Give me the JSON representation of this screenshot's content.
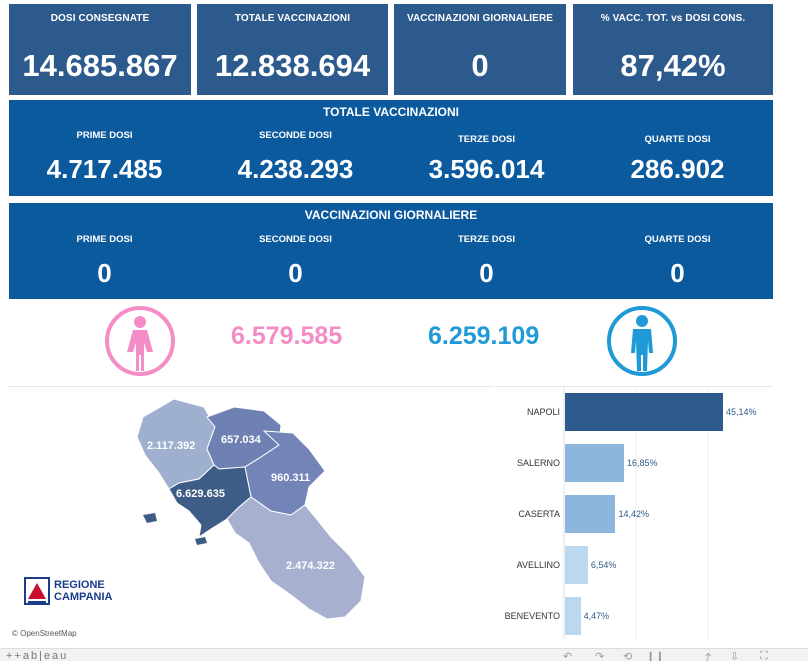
{
  "kpis": [
    {
      "label": "DOSI  CONSEGNATE",
      "value": "14.685.867"
    },
    {
      "label": "TOTALE VACCINAZIONI",
      "value": "12.838.694"
    },
    {
      "label": "VACCINAZIONI GIORNALIERE",
      "value": "0"
    },
    {
      "label": "% VACC. TOT. vs DOSI CONS.",
      "value": "87,42%"
    }
  ],
  "totale": {
    "title": "TOTALE VACCINAZIONI",
    "cols": [
      {
        "label": "PRIME DOSI",
        "value": "4.717.485"
      },
      {
        "label": "SECONDE DOSI",
        "value": "4.238.293"
      },
      {
        "label": "TERZE DOSI",
        "value": "3.596.014"
      },
      {
        "label": "QUARTE DOSI",
        "value": "286.902"
      }
    ]
  },
  "giornaliere": {
    "title": "VACCINAZIONI GIORNALIERE",
    "cols": [
      {
        "label": "PRIME DOSI",
        "value": "0"
      },
      {
        "label": "SECONDE DOSI",
        "value": "0"
      },
      {
        "label": "TERZE DOSI",
        "value": "0"
      },
      {
        "label": "QUARTE DOSI",
        "value": "0"
      }
    ]
  },
  "gender": {
    "female_value": "6.579.585",
    "male_value": "6.259.109",
    "female_color": "#f48cc6",
    "male_color": "#1f9ad6"
  },
  "map": {
    "provinces": [
      {
        "name": "Caserta",
        "value": "2.117.392"
      },
      {
        "name": "Benevento",
        "value": "657.034"
      },
      {
        "name": "Avellino",
        "value": "960.311"
      },
      {
        "name": "Napoli",
        "value": "6.629.635"
      },
      {
        "name": "Salerno",
        "value": "2.474.322"
      }
    ],
    "logo_line1": "REGIONE",
    "logo_line2": "CAMPANIA",
    "attribution": "© OpenStreetMap"
  },
  "chart_data": {
    "type": "bar",
    "orientation": "horizontal",
    "categories": [
      "NAPOLI",
      "SALERNO",
      "CASERTA",
      "AVELLINO",
      "BENEVENTO"
    ],
    "values": [
      45.14,
      16.85,
      14.42,
      6.54,
      4.47
    ],
    "value_labels": [
      "45,14%",
      "16,85%",
      "14,42%",
      "6,54%",
      "4,47%"
    ],
    "colors": [
      "#2d5a8c",
      "#8db6dd",
      "#8db6dd",
      "#bcd8ef",
      "#bcd8ef"
    ],
    "xlim": [
      0,
      50
    ]
  },
  "footer": {
    "brand": "++ab|eau"
  }
}
